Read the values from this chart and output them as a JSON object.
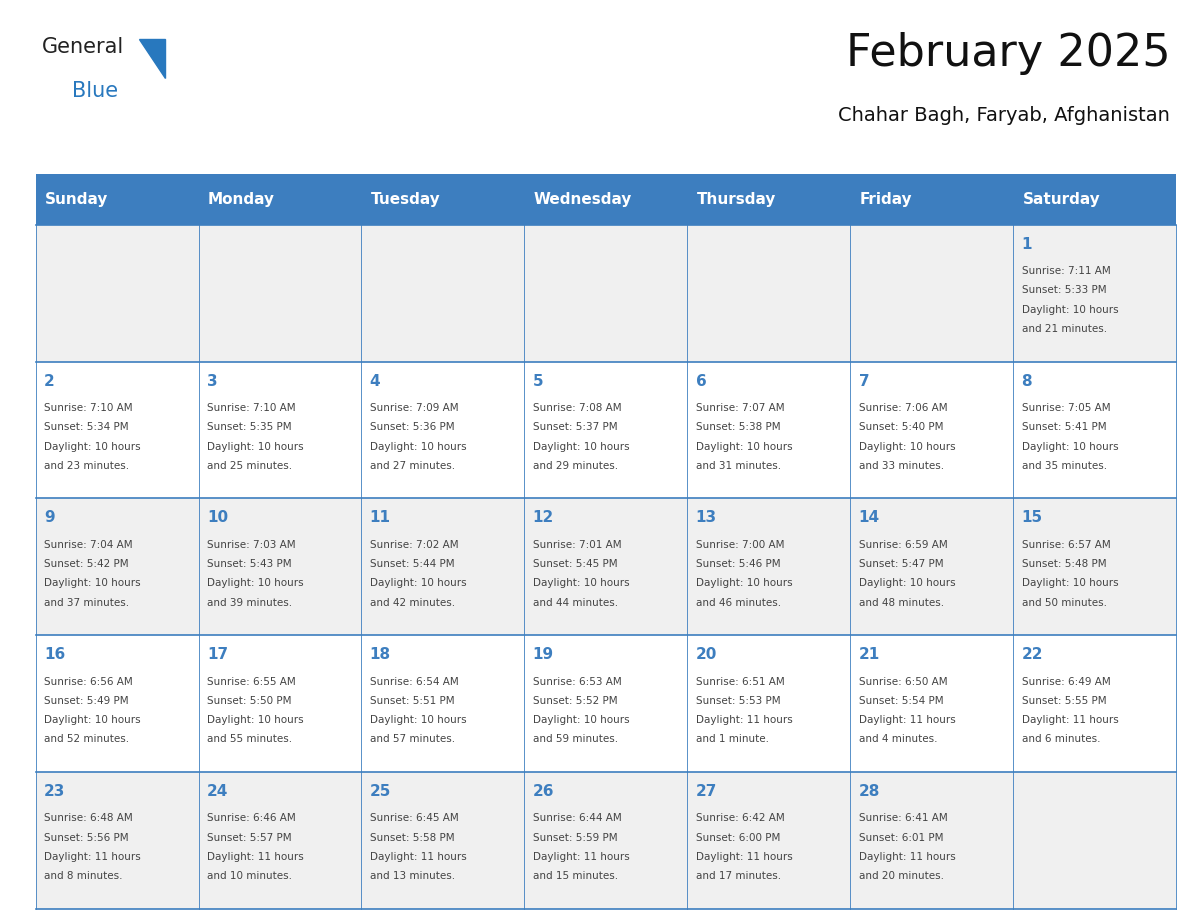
{
  "title": "February 2025",
  "subtitle": "Chahar Bagh, Faryab, Afghanistan",
  "header_bg_color": "#3d7ebf",
  "header_text_color": "#ffffff",
  "day_names": [
    "Sunday",
    "Monday",
    "Tuesday",
    "Wednesday",
    "Thursday",
    "Friday",
    "Saturday"
  ],
  "alt_row_color": "#f0f0f0",
  "white_row_color": "#ffffff",
  "cell_border_color": "#3d7ebf",
  "day_num_color": "#3d7ebf",
  "info_text_color": "#444444",
  "logo_general_color": "#222222",
  "logo_blue_color": "#2878be",
  "calendar_data": [
    [
      null,
      null,
      null,
      null,
      null,
      null,
      {
        "day": 1,
        "sunrise": "7:11 AM",
        "sunset": "5:33 PM",
        "daylight": "10 hours and 21 minutes."
      }
    ],
    [
      {
        "day": 2,
        "sunrise": "7:10 AM",
        "sunset": "5:34 PM",
        "daylight": "10 hours and 23 minutes."
      },
      {
        "day": 3,
        "sunrise": "7:10 AM",
        "sunset": "5:35 PM",
        "daylight": "10 hours and 25 minutes."
      },
      {
        "day": 4,
        "sunrise": "7:09 AM",
        "sunset": "5:36 PM",
        "daylight": "10 hours and 27 minutes."
      },
      {
        "day": 5,
        "sunrise": "7:08 AM",
        "sunset": "5:37 PM",
        "daylight": "10 hours and 29 minutes."
      },
      {
        "day": 6,
        "sunrise": "7:07 AM",
        "sunset": "5:38 PM",
        "daylight": "10 hours and 31 minutes."
      },
      {
        "day": 7,
        "sunrise": "7:06 AM",
        "sunset": "5:40 PM",
        "daylight": "10 hours and 33 minutes."
      },
      {
        "day": 8,
        "sunrise": "7:05 AM",
        "sunset": "5:41 PM",
        "daylight": "10 hours and 35 minutes."
      }
    ],
    [
      {
        "day": 9,
        "sunrise": "7:04 AM",
        "sunset": "5:42 PM",
        "daylight": "10 hours and 37 minutes."
      },
      {
        "day": 10,
        "sunrise": "7:03 AM",
        "sunset": "5:43 PM",
        "daylight": "10 hours and 39 minutes."
      },
      {
        "day": 11,
        "sunrise": "7:02 AM",
        "sunset": "5:44 PM",
        "daylight": "10 hours and 42 minutes."
      },
      {
        "day": 12,
        "sunrise": "7:01 AM",
        "sunset": "5:45 PM",
        "daylight": "10 hours and 44 minutes."
      },
      {
        "day": 13,
        "sunrise": "7:00 AM",
        "sunset": "5:46 PM",
        "daylight": "10 hours and 46 minutes."
      },
      {
        "day": 14,
        "sunrise": "6:59 AM",
        "sunset": "5:47 PM",
        "daylight": "10 hours and 48 minutes."
      },
      {
        "day": 15,
        "sunrise": "6:57 AM",
        "sunset": "5:48 PM",
        "daylight": "10 hours and 50 minutes."
      }
    ],
    [
      {
        "day": 16,
        "sunrise": "6:56 AM",
        "sunset": "5:49 PM",
        "daylight": "10 hours and 52 minutes."
      },
      {
        "day": 17,
        "sunrise": "6:55 AM",
        "sunset": "5:50 PM",
        "daylight": "10 hours and 55 minutes."
      },
      {
        "day": 18,
        "sunrise": "6:54 AM",
        "sunset": "5:51 PM",
        "daylight": "10 hours and 57 minutes."
      },
      {
        "day": 19,
        "sunrise": "6:53 AM",
        "sunset": "5:52 PM",
        "daylight": "10 hours and 59 minutes."
      },
      {
        "day": 20,
        "sunrise": "6:51 AM",
        "sunset": "5:53 PM",
        "daylight": "11 hours and 1 minute."
      },
      {
        "day": 21,
        "sunrise": "6:50 AM",
        "sunset": "5:54 PM",
        "daylight": "11 hours and 4 minutes."
      },
      {
        "day": 22,
        "sunrise": "6:49 AM",
        "sunset": "5:55 PM",
        "daylight": "11 hours and 6 minutes."
      }
    ],
    [
      {
        "day": 23,
        "sunrise": "6:48 AM",
        "sunset": "5:56 PM",
        "daylight": "11 hours and 8 minutes."
      },
      {
        "day": 24,
        "sunrise": "6:46 AM",
        "sunset": "5:57 PM",
        "daylight": "11 hours and 10 minutes."
      },
      {
        "day": 25,
        "sunrise": "6:45 AM",
        "sunset": "5:58 PM",
        "daylight": "11 hours and 13 minutes."
      },
      {
        "day": 26,
        "sunrise": "6:44 AM",
        "sunset": "5:59 PM",
        "daylight": "11 hours and 15 minutes."
      },
      {
        "day": 27,
        "sunrise": "6:42 AM",
        "sunset": "6:00 PM",
        "daylight": "11 hours and 17 minutes."
      },
      {
        "day": 28,
        "sunrise": "6:41 AM",
        "sunset": "6:01 PM",
        "daylight": "11 hours and 20 minutes."
      },
      null
    ]
  ]
}
